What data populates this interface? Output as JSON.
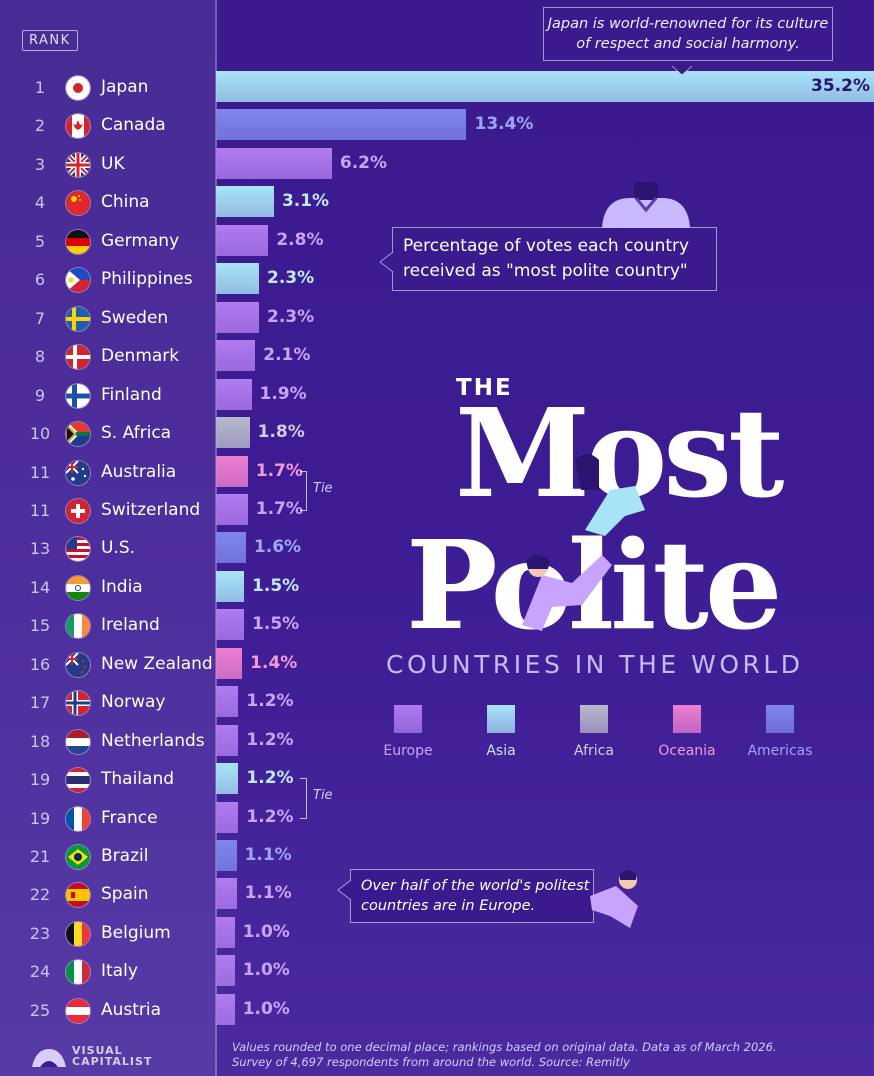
{
  "rank_header": "RANK",
  "callouts": {
    "japan": "Japan is world-renowned for its culture of respect and social harmony.",
    "percentage": "Percentage of votes each country received as \"most polite country\"",
    "europe": "Over half of the world's politest countries are in Europe."
  },
  "title": {
    "the": "THE",
    "most": "Most",
    "polite": "Polite",
    "subtitle": "COUNTRIES IN THE WORLD"
  },
  "tie_label": "Tie",
  "legend": [
    {
      "label": "Europe",
      "color": "#b07cf0",
      "text_color": "#c9a4ff"
    },
    {
      "label": "Asia",
      "color": "#a8e4f8",
      "text_color": "#bfeaff"
    },
    {
      "label": "Africa",
      "color": "#b7b9cc",
      "text_color": "#cfd0e0"
    },
    {
      "label": "Oceania",
      "color": "#ee7fd0",
      "text_color": "#f59ad8"
    },
    {
      "label": "Americas",
      "color": "#7f86ee",
      "text_color": "#9aa6f8"
    }
  ],
  "footnote": {
    "line1": "Values rounded to one decimal place; rankings based on original data. Data as of March 2026.",
    "line2": "Survey of 4,697 respondents from around the world. Source: Remitly"
  },
  "brand": {
    "line1": "VISUAL",
    "line2": "CAPITALIST"
  },
  "chart_data": {
    "type": "bar",
    "orientation": "horizontal",
    "unit": "%",
    "xlim": [
      0,
      35.2
    ],
    "rows": [
      {
        "rank": "1",
        "country": "Japan",
        "value": 35.2,
        "label": "35.2%",
        "region": "Asia",
        "flag": "japan-flag"
      },
      {
        "rank": "2",
        "country": "Canada",
        "value": 13.4,
        "label": "13.4%",
        "region": "Americas",
        "flag": "canada-flag"
      },
      {
        "rank": "3",
        "country": "UK",
        "value": 6.2,
        "label": "6.2%",
        "region": "Europe",
        "flag": "uk-flag"
      },
      {
        "rank": "4",
        "country": "China",
        "value": 3.1,
        "label": "3.1%",
        "region": "Asia",
        "flag": "china-flag"
      },
      {
        "rank": "5",
        "country": "Germany",
        "value": 2.8,
        "label": "2.8%",
        "region": "Europe",
        "flag": "germany-flag"
      },
      {
        "rank": "6",
        "country": "Philippines",
        "value": 2.3,
        "label": "2.3%",
        "region": "Asia",
        "flag": "philippines-flag"
      },
      {
        "rank": "7",
        "country": "Sweden",
        "value": 2.3,
        "label": "2.3%",
        "region": "Europe",
        "flag": "sweden-flag"
      },
      {
        "rank": "8",
        "country": "Denmark",
        "value": 2.1,
        "label": "2.1%",
        "region": "Europe",
        "flag": "denmark-flag"
      },
      {
        "rank": "9",
        "country": "Finland",
        "value": 1.9,
        "label": "1.9%",
        "region": "Europe",
        "flag": "finland-flag"
      },
      {
        "rank": "10",
        "country": "S. Africa",
        "value": 1.8,
        "label": "1.8%",
        "region": "Africa",
        "flag": "south-africa-flag"
      },
      {
        "rank": "11",
        "country": "Australia",
        "value": 1.7,
        "label": "1.7%",
        "region": "Oceania",
        "flag": "australia-flag"
      },
      {
        "rank": "11",
        "country": "Switzerland",
        "value": 1.7,
        "label": "1.7%",
        "region": "Europe",
        "flag": "switzerland-flag"
      },
      {
        "rank": "13",
        "country": "U.S.",
        "value": 1.6,
        "label": "1.6%",
        "region": "Americas",
        "flag": "us-flag"
      },
      {
        "rank": "14",
        "country": "India",
        "value": 1.5,
        "label": "1.5%",
        "region": "Asia",
        "flag": "india-flag"
      },
      {
        "rank": "15",
        "country": "Ireland",
        "value": 1.5,
        "label": "1.5%",
        "region": "Europe",
        "flag": "ireland-flag"
      },
      {
        "rank": "16",
        "country": "New Zealand",
        "value": 1.4,
        "label": "1.4%",
        "region": "Oceania",
        "flag": "new-zealand-flag"
      },
      {
        "rank": "17",
        "country": "Norway",
        "value": 1.2,
        "label": "1.2%",
        "region": "Europe",
        "flag": "norway-flag"
      },
      {
        "rank": "18",
        "country": "Netherlands",
        "value": 1.2,
        "label": "1.2%",
        "region": "Europe",
        "flag": "netherlands-flag"
      },
      {
        "rank": "19",
        "country": "Thailand",
        "value": 1.2,
        "label": "1.2%",
        "region": "Asia",
        "flag": "thailand-flag"
      },
      {
        "rank": "19",
        "country": "France",
        "value": 1.2,
        "label": "1.2%",
        "region": "Europe",
        "flag": "france-flag"
      },
      {
        "rank": "21",
        "country": "Brazil",
        "value": 1.1,
        "label": "1.1%",
        "region": "Americas",
        "flag": "brazil-flag"
      },
      {
        "rank": "22",
        "country": "Spain",
        "value": 1.1,
        "label": "1.1%",
        "region": "Europe",
        "flag": "spain-flag"
      },
      {
        "rank": "23",
        "country": "Belgium",
        "value": 1.0,
        "label": "1.0%",
        "region": "Europe",
        "flag": "belgium-flag"
      },
      {
        "rank": "24",
        "country": "Italy",
        "value": 1.0,
        "label": "1.0%",
        "region": "Europe",
        "flag": "italy-flag"
      },
      {
        "rank": "25",
        "country": "Austria",
        "value": 1.0,
        "label": "1.0%",
        "region": "Europe",
        "flag": "austria-flag"
      }
    ],
    "ties": [
      [
        "Australia",
        "Switzerland"
      ],
      [
        "Thailand",
        "France"
      ]
    ]
  }
}
